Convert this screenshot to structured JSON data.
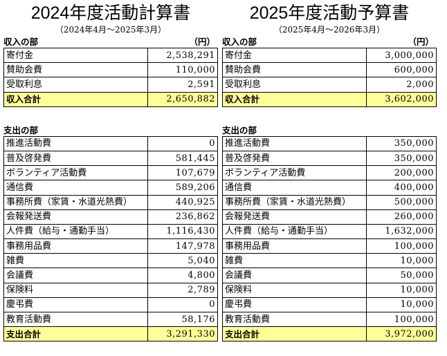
{
  "left": {
    "title": "2024年度活動計算書",
    "period": "（2024年4月～2025年3月）",
    "income_header": "収入の部",
    "unit": "（円）",
    "income_rows": [
      {
        "label": "寄付金",
        "amount": "2,538,291"
      },
      {
        "label": "賛助会費",
        "amount": "110,000"
      },
      {
        "label": "受取利息",
        "amount": "2,591"
      }
    ],
    "income_total": {
      "label": "収入合計",
      "amount": "2,650,882"
    },
    "expense_header": "支出の部",
    "expense_rows": [
      {
        "label": "推進活動費",
        "amount": "0"
      },
      {
        "label": "普及啓発費",
        "amount": "581,445"
      },
      {
        "label": "ボランティア活動費",
        "amount": "107,679"
      },
      {
        "label": "通信費",
        "amount": "589,206"
      },
      {
        "label": "事務所費（家賃・水道光熱費）",
        "amount": "440,925"
      },
      {
        "label": "会報発送費",
        "amount": "236,862"
      },
      {
        "label": "人件費（給与・通勤手当）",
        "amount": "1,116,430"
      },
      {
        "label": "事務用品費",
        "amount": "147,978"
      },
      {
        "label": "雑費",
        "amount": "5,040"
      },
      {
        "label": "会議費",
        "amount": "4,800"
      },
      {
        "label": "保険料",
        "amount": "2,789"
      },
      {
        "label": "慶弔費",
        "amount": "0"
      },
      {
        "label": "教育活動費",
        "amount": "58,176"
      }
    ],
    "expense_total": {
      "label": "支出合計",
      "amount": "3,291,330"
    }
  },
  "right": {
    "title": "2025年度活動予算書",
    "period": "（2025年4月～2026年3月）",
    "income_header": "収入の部",
    "unit": "（円）",
    "income_rows": [
      {
        "label": "寄付金",
        "amount": "3,000,000"
      },
      {
        "label": "賛助会費",
        "amount": "600,000"
      },
      {
        "label": "受取利息",
        "amount": "2,000"
      }
    ],
    "income_total": {
      "label": "収入合計",
      "amount": "3,602,000"
    },
    "expense_header": "支出の部",
    "expense_rows": [
      {
        "label": "推進活動費",
        "amount": "350,000"
      },
      {
        "label": "普及啓発費",
        "amount": "350,000"
      },
      {
        "label": "ボランティア活動費",
        "amount": "200,000"
      },
      {
        "label": "通信費",
        "amount": "400,000"
      },
      {
        "label": "事務所費（家賃・水道光熱費）",
        "amount": "500,000"
      },
      {
        "label": "会報発送費",
        "amount": "260,000"
      },
      {
        "label": "人件費（給与・通勤手当）",
        "amount": "1,632,000"
      },
      {
        "label": "事務用品費",
        "amount": "100,000"
      },
      {
        "label": "雑費",
        "amount": "10,000"
      },
      {
        "label": "会議費",
        "amount": "50,000"
      },
      {
        "label": "保険料",
        "amount": "10,000"
      },
      {
        "label": "慶弔費",
        "amount": "10,000"
      },
      {
        "label": "教育活動費",
        "amount": "100,000"
      }
    ],
    "expense_total": {
      "label": "支出合計",
      "amount": "3,972,000"
    }
  }
}
